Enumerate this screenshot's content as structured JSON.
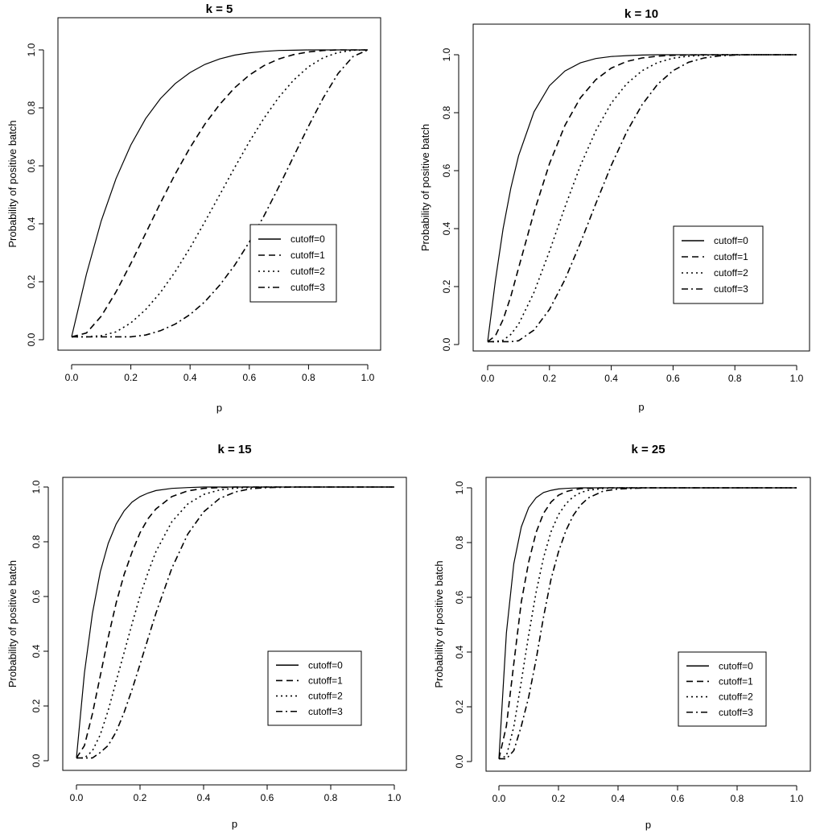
{
  "chart_data": [
    {
      "type": "line",
      "title": "k = 5",
      "xlabel": "p",
      "ylabel": "Probability of positive batch",
      "xlim": [
        0,
        1
      ],
      "ylim": [
        0,
        1
      ],
      "xticks": [
        "0.0",
        "0.2",
        "0.4",
        "0.6",
        "0.8",
        "1.0"
      ],
      "yticks": [
        "0.0",
        "0.2",
        "0.4",
        "0.6",
        "0.8",
        "1.0"
      ],
      "legend_position": "center-right",
      "x": [
        0.0,
        0.05,
        0.1,
        0.15,
        0.2,
        0.25,
        0.3,
        0.35,
        0.4,
        0.45,
        0.5,
        0.55,
        0.6,
        0.65,
        0.7,
        0.75,
        0.8,
        0.85,
        0.9,
        0.95,
        1.0
      ],
      "series": [
        {
          "name": "cutoff=0",
          "values": [
            0.01,
            0.226,
            0.41,
            0.556,
            0.672,
            0.763,
            0.832,
            0.884,
            0.922,
            0.95,
            0.969,
            0.982,
            0.99,
            0.995,
            0.998,
            0.999,
            1.0,
            1.0,
            1.0,
            1.0,
            1.0
          ]
        },
        {
          "name": "cutoff=1",
          "values": [
            0.01,
            0.023,
            0.081,
            0.165,
            0.263,
            0.367,
            0.472,
            0.572,
            0.663,
            0.744,
            0.812,
            0.869,
            0.913,
            0.946,
            0.969,
            0.984,
            0.993,
            0.998,
            1.0,
            1.0,
            1.0
          ]
        },
        {
          "name": "cutoff=2",
          "values": [
            0.01,
            0.01,
            0.014,
            0.027,
            0.058,
            0.104,
            0.163,
            0.235,
            0.317,
            0.407,
            0.5,
            0.593,
            0.683,
            0.765,
            0.837,
            0.896,
            0.942,
            0.973,
            0.991,
            0.999,
            1.0
          ]
        },
        {
          "name": "cutoff=3",
          "values": [
            0.01,
            0.01,
            0.01,
            0.01,
            0.01,
            0.016,
            0.031,
            0.054,
            0.087,
            0.131,
            0.188,
            0.256,
            0.337,
            0.428,
            0.528,
            0.633,
            0.737,
            0.835,
            0.919,
            0.977,
            1.0
          ]
        }
      ]
    },
    {
      "type": "line",
      "title": "k = 10",
      "xlabel": "p",
      "ylabel": "Probability of positive batch",
      "xlim": [
        0,
        1
      ],
      "ylim": [
        0,
        1
      ],
      "xticks": [
        "0.0",
        "0.2",
        "0.4",
        "0.6",
        "0.8",
        "1.0"
      ],
      "yticks": [
        "0.0",
        "0.2",
        "0.4",
        "0.6",
        "0.8",
        "1.0"
      ],
      "legend_position": "bottom-right",
      "x": [
        0.0,
        0.025,
        0.05,
        0.075,
        0.1,
        0.15,
        0.2,
        0.25,
        0.3,
        0.35,
        0.4,
        0.45,
        0.5,
        0.55,
        0.6,
        0.65,
        0.7,
        0.75,
        0.8,
        0.85,
        0.9,
        0.95,
        1.0
      ],
      "series": [
        {
          "name": "cutoff=0",
          "values": [
            0.01,
            0.22,
            0.4,
            0.54,
            0.651,
            0.803,
            0.893,
            0.944,
            0.972,
            0.987,
            0.994,
            0.997,
            0.999,
            1.0,
            1.0,
            1.0,
            1.0,
            1.0,
            1.0,
            1.0,
            1.0,
            1.0,
            1.0
          ]
        },
        {
          "name": "cutoff=1",
          "values": [
            0.01,
            0.03,
            0.086,
            0.166,
            0.264,
            0.456,
            0.624,
            0.756,
            0.851,
            0.914,
            0.954,
            0.977,
            0.989,
            0.995,
            0.998,
            0.999,
            1.0,
            1.0,
            1.0,
            1.0,
            1.0,
            1.0,
            1.0
          ]
        },
        {
          "name": "cutoff=2",
          "values": [
            0.01,
            0.01,
            0.015,
            0.035,
            0.07,
            0.18,
            0.322,
            0.474,
            0.617,
            0.738,
            0.833,
            0.9,
            0.945,
            0.973,
            0.988,
            0.995,
            0.998,
            1.0,
            1.0,
            1.0,
            1.0,
            1.0,
            1.0
          ]
        },
        {
          "name": "cutoff=3",
          "values": [
            0.01,
            0.01,
            0.01,
            0.01,
            0.013,
            0.05,
            0.121,
            0.224,
            0.35,
            0.486,
            0.618,
            0.734,
            0.828,
            0.898,
            0.945,
            0.974,
            0.989,
            0.996,
            0.999,
            1.0,
            1.0,
            1.0,
            1.0
          ]
        }
      ]
    },
    {
      "type": "line",
      "title": "k = 15",
      "xlabel": "p",
      "ylabel": "Probability of positive batch",
      "xlim": [
        0,
        1
      ],
      "ylim": [
        0,
        1
      ],
      "xticks": [
        "0.0",
        "0.2",
        "0.4",
        "0.6",
        "0.8",
        "1.0"
      ],
      "yticks": [
        "0.0",
        "0.2",
        "0.4",
        "0.6",
        "0.8",
        "1.0"
      ],
      "legend_position": "bottom-right",
      "x": [
        0.0,
        0.025,
        0.05,
        0.075,
        0.1,
        0.125,
        0.15,
        0.175,
        0.2,
        0.225,
        0.25,
        0.3,
        0.35,
        0.4,
        0.45,
        0.5,
        0.55,
        0.6,
        0.7,
        0.8,
        0.9,
        1.0
      ],
      "series": [
        {
          "name": "cutoff=0",
          "values": [
            0.01,
            0.32,
            0.537,
            0.69,
            0.794,
            0.865,
            0.913,
            0.945,
            0.965,
            0.978,
            0.987,
            0.995,
            0.998,
            1.0,
            1.0,
            1.0,
            1.0,
            1.0,
            1.0,
            1.0,
            1.0,
            1.0
          ]
        },
        {
          "name": "cutoff=1",
          "values": [
            0.01,
            0.055,
            0.171,
            0.31,
            0.451,
            0.577,
            0.681,
            0.762,
            0.833,
            0.884,
            0.92,
            0.965,
            0.986,
            0.995,
            0.998,
            1.0,
            1.0,
            1.0,
            1.0,
            1.0,
            1.0,
            1.0
          ]
        },
        {
          "name": "cutoff=2",
          "values": [
            0.01,
            0.01,
            0.036,
            0.095,
            0.184,
            0.291,
            0.396,
            0.5,
            0.602,
            0.687,
            0.764,
            0.873,
            0.938,
            0.973,
            0.989,
            0.996,
            0.999,
            1.0,
            1.0,
            1.0,
            1.0,
            1.0
          ]
        },
        {
          "name": "cutoff=3",
          "values": [
            0.01,
            0.01,
            0.01,
            0.03,
            0.056,
            0.106,
            0.177,
            0.26,
            0.352,
            0.446,
            0.539,
            0.703,
            0.828,
            0.909,
            0.958,
            0.982,
            0.994,
            0.998,
            1.0,
            1.0,
            1.0,
            1.0
          ]
        }
      ]
    },
    {
      "type": "line",
      "title": "k = 25",
      "xlabel": "p",
      "ylabel": "Probability of positive batch",
      "xlim": [
        0,
        1
      ],
      "ylim": [
        0,
        1
      ],
      "xticks": [
        "0.0",
        "0.2",
        "0.4",
        "0.6",
        "0.8",
        "1.0"
      ],
      "yticks": [
        "0.0",
        "0.2",
        "0.4",
        "0.6",
        "0.8",
        "1.0"
      ],
      "legend_position": "bottom-right",
      "x": [
        0.0,
        0.025,
        0.05,
        0.075,
        0.1,
        0.125,
        0.15,
        0.175,
        0.2,
        0.225,
        0.25,
        0.275,
        0.3,
        0.35,
        0.4,
        0.5,
        0.6,
        0.7,
        0.8,
        0.9,
        1.0
      ],
      "series": [
        {
          "name": "cutoff=0",
          "values": [
            0.01,
            0.47,
            0.723,
            0.857,
            0.928,
            0.964,
            0.983,
            0.991,
            0.996,
            0.998,
            0.999,
            1.0,
            1.0,
            1.0,
            1.0,
            1.0,
            1.0,
            1.0,
            1.0,
            1.0,
            1.0
          ]
        },
        {
          "name": "cutoff=1",
          "values": [
            0.01,
            0.13,
            0.358,
            0.583,
            0.729,
            0.838,
            0.907,
            0.948,
            0.973,
            0.986,
            0.993,
            0.997,
            0.998,
            1.0,
            1.0,
            1.0,
            1.0,
            1.0,
            1.0,
            1.0,
            1.0
          ]
        },
        {
          "name": "cutoff=2",
          "values": [
            0.01,
            0.02,
            0.127,
            0.292,
            0.463,
            0.62,
            0.746,
            0.84,
            0.902,
            0.942,
            0.968,
            0.983,
            0.991,
            0.998,
            1.0,
            1.0,
            1.0,
            1.0,
            1.0,
            1.0,
            1.0
          ]
        },
        {
          "name": "cutoff=3",
          "values": [
            0.01,
            0.01,
            0.04,
            0.129,
            0.236,
            0.374,
            0.529,
            0.667,
            0.766,
            0.844,
            0.9,
            0.938,
            0.963,
            0.988,
            0.996,
            1.0,
            1.0,
            1.0,
            1.0,
            1.0,
            1.0
          ]
        }
      ]
    }
  ],
  "styles": {
    "line_color": "#000000",
    "background": "#ffffff",
    "dash_patterns": [
      "none",
      "8,5",
      "2,4",
      "8,4,2,4"
    ]
  }
}
